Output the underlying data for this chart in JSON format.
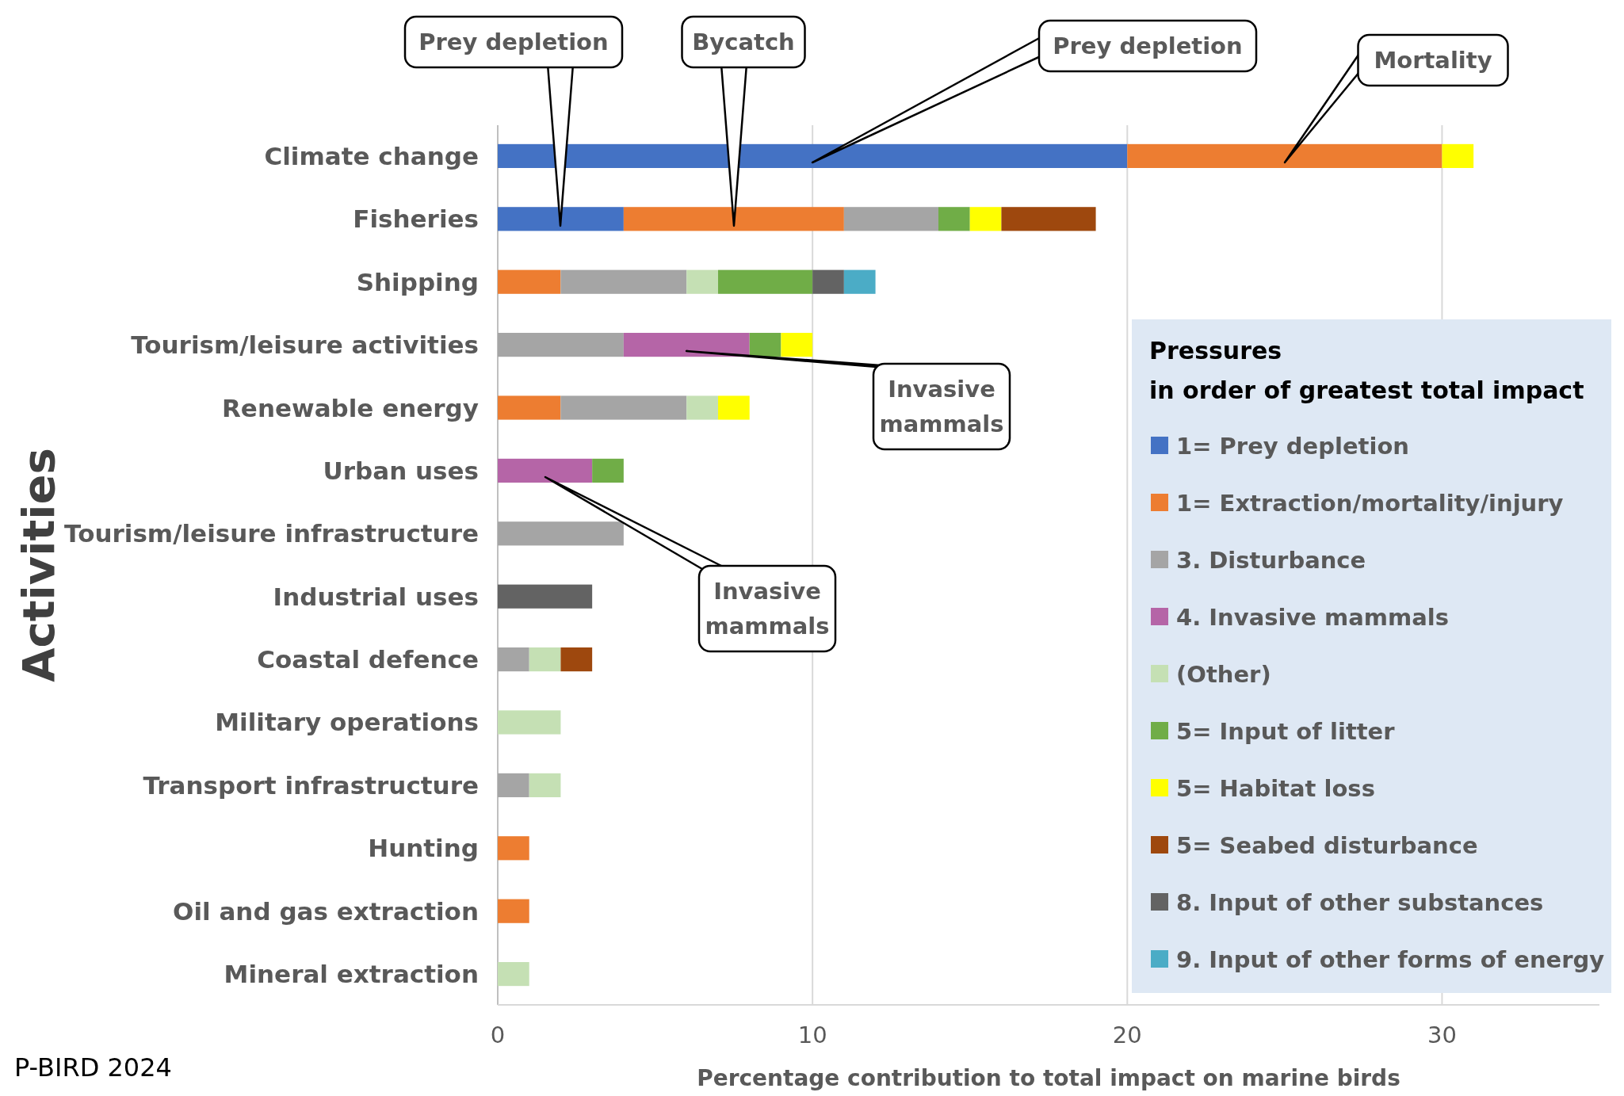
{
  "chart_data": {
    "type": "bar",
    "orientation": "horizontal",
    "stacked": true,
    "xlabel": "Percentage contribution to  total impact on marine birds",
    "ylabel": "Activities",
    "legend_title": "Pressures\nin order of greatest total impact",
    "legend": "right",
    "grid": "x",
    "categories": [
      "Climate change",
      "Fisheries",
      "Shipping",
      "Tourism/leisure activities",
      "Renewable energy",
      "Urban uses",
      "Tourism/leisure infrastructure",
      "Industrial uses",
      "Coastal defence",
      "Military operations",
      "Transport infrastructure",
      "Hunting",
      "Oil and gas extraction",
      "Mineral extraction"
    ],
    "xlim": [
      0,
      35
    ],
    "xticks": [
      0,
      10,
      20,
      30
    ],
    "series": [
      {
        "name": "1= Prey depletion",
        "color": "#4472c4",
        "values": [
          20,
          4,
          null,
          null,
          null,
          null,
          null,
          null,
          null,
          null,
          null,
          null,
          null,
          null
        ]
      },
      {
        "name": "1= Extraction/mortality/injury",
        "color": "#ed7d31",
        "values": [
          10,
          7,
          2,
          null,
          2,
          null,
          null,
          null,
          null,
          null,
          null,
          1,
          1,
          null
        ]
      },
      {
        "name": "3. Disturbance",
        "color": "#a5a5a5",
        "values": [
          null,
          3,
          4,
          4,
          4,
          null,
          4,
          null,
          1,
          null,
          1,
          null,
          null,
          null
        ]
      },
      {
        "name": "4. Invasive mammals",
        "color": "#b565a7",
        "values": [
          null,
          null,
          null,
          4,
          null,
          3,
          null,
          null,
          null,
          null,
          null,
          null,
          null,
          null
        ]
      },
      {
        "name": "(Other)",
        "color": "#c5e0b4",
        "values": [
          null,
          null,
          1,
          null,
          1,
          null,
          null,
          null,
          1,
          2,
          1,
          null,
          null,
          1
        ]
      },
      {
        "name": "5= Input of litter",
        "color": "#70ad47",
        "values": [
          null,
          1,
          3,
          1,
          null,
          1,
          null,
          null,
          null,
          null,
          null,
          null,
          null,
          null
        ]
      },
      {
        "name": "5= Habitat loss",
        "color": "#ffff00",
        "values": [
          1,
          1,
          null,
          1,
          1,
          null,
          null,
          null,
          null,
          null,
          null,
          null,
          null,
          null
        ]
      },
      {
        "name": "5= Seabed disturbance",
        "color": "#9e480e",
        "values": [
          null,
          3,
          null,
          null,
          null,
          null,
          null,
          null,
          1,
          null,
          null,
          null,
          null,
          null
        ]
      },
      {
        "name": "8. Input of other substances",
        "color": "#636363",
        "values": [
          null,
          null,
          1,
          null,
          null,
          null,
          null,
          3,
          null,
          null,
          null,
          null,
          null,
          null
        ]
      },
      {
        "name": "9. Input of other forms of energy",
        "color": "#4bacc6",
        "values": [
          null,
          null,
          1,
          null,
          null,
          null,
          null,
          null,
          null,
          null,
          null,
          null,
          null,
          null
        ]
      }
    ],
    "annotations": [
      "Prey depletion",
      "Bycatch",
      "Prey depletion",
      "Mortality",
      "Invasive mammals",
      "Invasive mammals",
      "P-BIRD 2024"
    ]
  }
}
